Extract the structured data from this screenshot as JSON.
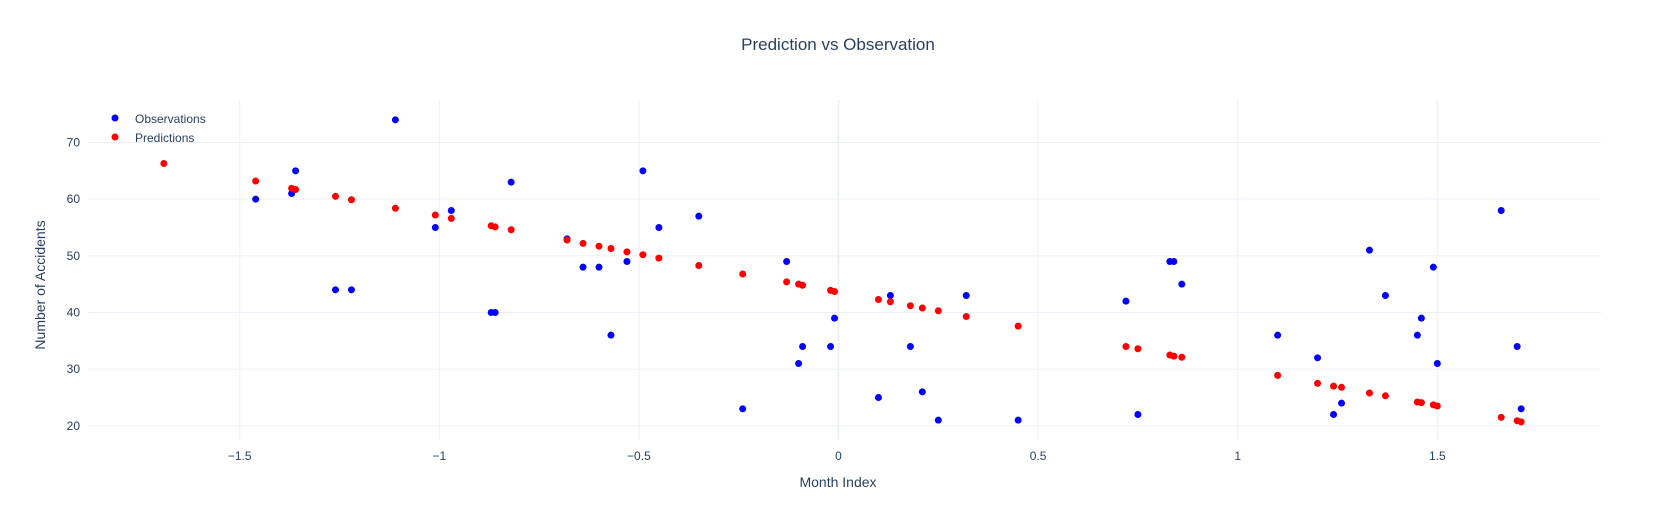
{
  "colors": {
    "observations": "#0000ff",
    "predictions": "#ff0000",
    "text": "#2a3f5f",
    "grid": "#ebf0f8",
    "background": "#ffffff"
  },
  "chart_data": {
    "type": "scatter",
    "title": "Prediction vs Observation",
    "xlabel": "Month Index",
    "ylabel": "Number of Accidents",
    "xlim": [
      -1.88,
      1.91
    ],
    "ylim": [
      17.5,
      77.5
    ],
    "xticks": [
      {
        "value": -1.5,
        "label": "−1.5"
      },
      {
        "value": -1,
        "label": "−1"
      },
      {
        "value": -0.5,
        "label": "−0.5"
      },
      {
        "value": 0,
        "label": "0"
      },
      {
        "value": 0.5,
        "label": "0.5"
      },
      {
        "value": 1,
        "label": "1"
      },
      {
        "value": 1.5,
        "label": "1.5"
      }
    ],
    "yticks": [
      {
        "value": 20,
        "label": "20"
      },
      {
        "value": 30,
        "label": "30"
      },
      {
        "value": 40,
        "label": "40"
      },
      {
        "value": 50,
        "label": "50"
      },
      {
        "value": 60,
        "label": "60"
      },
      {
        "value": 70,
        "label": "70"
      }
    ],
    "grid": true,
    "legend_position": "top-left",
    "series": [
      {
        "name": "Observations",
        "color": "#0000ff",
        "x": [
          -1.46,
          -1.37,
          -1.36,
          -1.26,
          -1.22,
          -1.11,
          -1.01,
          -0.97,
          -0.87,
          -0.86,
          -0.82,
          -0.68,
          -0.64,
          -0.6,
          -0.57,
          -0.53,
          -0.49,
          -0.45,
          -0.35,
          -0.24,
          -0.13,
          -0.1,
          -0.09,
          -0.02,
          -0.01,
          0.1,
          0.13,
          0.18,
          0.21,
          0.25,
          0.32,
          0.45,
          0.72,
          0.75,
          0.83,
          0.84,
          0.86,
          1.1,
          1.2,
          1.24,
          1.26,
          1.33,
          1.37,
          1.45,
          1.46,
          1.49,
          1.5,
          1.66,
          1.7,
          1.71
        ],
        "y": [
          60,
          61,
          65,
          44,
          44,
          74,
          55,
          58,
          40,
          40,
          63,
          53,
          48,
          48,
          36,
          49,
          65,
          55,
          57,
          23,
          49,
          31,
          34,
          34,
          39,
          25,
          43,
          34,
          26,
          21,
          43,
          21,
          42,
          22,
          49,
          49,
          45,
          36,
          32,
          22,
          24,
          51,
          43,
          36,
          39,
          48,
          31,
          58,
          34,
          23
        ]
      },
      {
        "name": "Predictions",
        "color": "#ff0000",
        "x": [
          -1.69,
          -1.46,
          -1.37,
          -1.36,
          -1.26,
          -1.22,
          -1.11,
          -1.01,
          -0.97,
          -0.87,
          -0.86,
          -0.82,
          -0.68,
          -0.64,
          -0.6,
          -0.57,
          -0.53,
          -0.49,
          -0.45,
          -0.35,
          -0.24,
          -0.13,
          -0.1,
          -0.09,
          -0.02,
          -0.01,
          0.1,
          0.13,
          0.18,
          0.21,
          0.25,
          0.32,
          0.45,
          0.72,
          0.75,
          0.83,
          0.84,
          0.86,
          1.1,
          1.2,
          1.24,
          1.26,
          1.33,
          1.37,
          1.45,
          1.46,
          1.49,
          1.5,
          1.66,
          1.7,
          1.71
        ],
        "y": [
          66.3,
          63.2,
          61.9,
          61.7,
          60.5,
          59.9,
          58.4,
          57.2,
          56.6,
          55.3,
          55.1,
          54.6,
          52.8,
          52.2,
          51.7,
          51.3,
          50.7,
          50.2,
          49.6,
          48.3,
          46.8,
          45.4,
          45.0,
          44.8,
          43.9,
          43.7,
          42.3,
          41.9,
          41.2,
          40.8,
          40.3,
          39.3,
          37.6,
          34.0,
          33.6,
          32.5,
          32.3,
          32.1,
          28.9,
          27.5,
          27.0,
          26.8,
          25.8,
          25.3,
          24.2,
          24.1,
          23.7,
          23.5,
          21.5,
          20.9,
          20.7
        ]
      }
    ]
  }
}
